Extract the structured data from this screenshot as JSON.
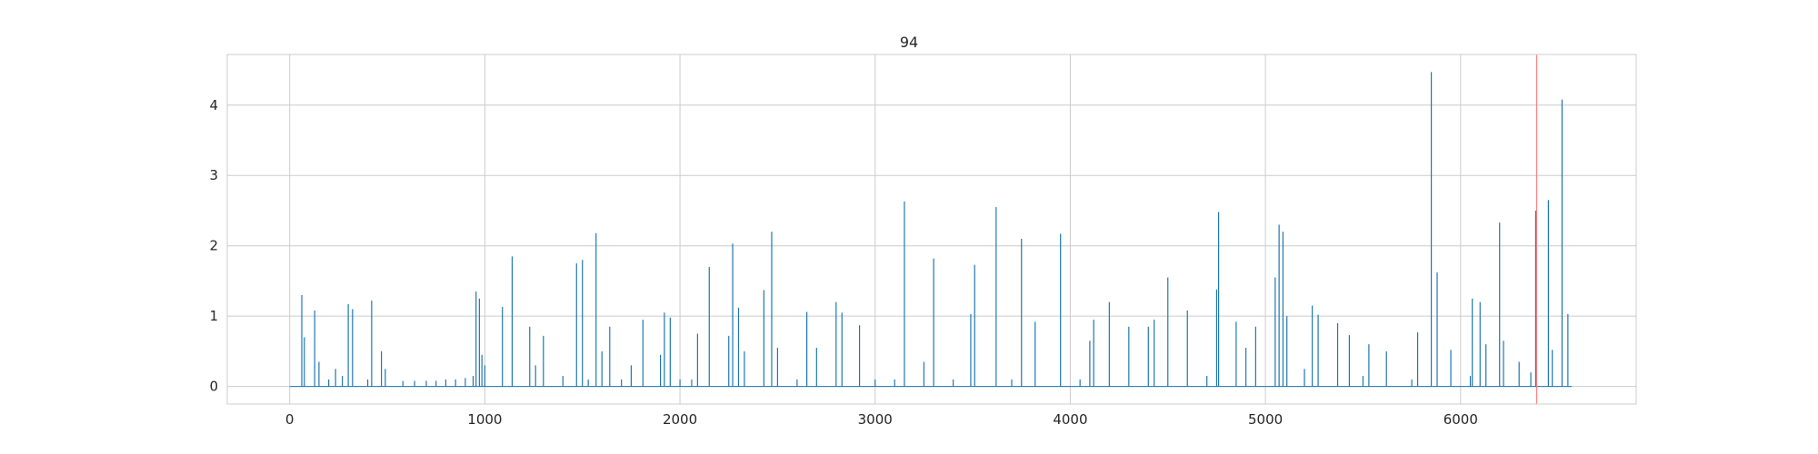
{
  "chart_data": {
    "type": "line",
    "title": "94",
    "xlabel": "",
    "ylabel": "",
    "xlim": [
      -320,
      6900
    ],
    "ylim": [
      -0.25,
      4.72
    ],
    "xticks": [
      0,
      1000,
      2000,
      3000,
      4000,
      5000,
      6000
    ],
    "xtick_labels": [
      "0",
      "1000",
      "2000",
      "3000",
      "4000",
      "5000",
      "6000"
    ],
    "yticks": [
      0,
      1,
      2,
      3,
      4
    ],
    "ytick_labels": [
      "0",
      "1",
      "2",
      "3",
      "4"
    ],
    "grid": true,
    "colors": {
      "series": "#1f77b4",
      "marker_line": "#ff7f7f",
      "grid": "#cccccc"
    },
    "vertical_marker_x": 6390,
    "series": [
      {
        "baseline": 0,
        "x_range": [
          0,
          6570
        ],
        "spikes": [
          [
            62,
            1.3
          ],
          [
            75,
            0.7
          ],
          [
            128,
            1.08
          ],
          [
            150,
            0.35
          ],
          [
            200,
            0.1
          ],
          [
            235,
            0.25
          ],
          [
            270,
            0.15
          ],
          [
            300,
            1.17
          ],
          [
            322,
            1.1
          ],
          [
            400,
            0.1
          ],
          [
            420,
            1.22
          ],
          [
            470,
            0.5
          ],
          [
            490,
            0.25
          ],
          [
            580,
            0.08
          ],
          [
            640,
            0.08
          ],
          [
            700,
            0.08
          ],
          [
            750,
            0.08
          ],
          [
            800,
            0.1
          ],
          [
            850,
            0.1
          ],
          [
            900,
            0.12
          ],
          [
            940,
            0.15
          ],
          [
            955,
            1.35
          ],
          [
            972,
            1.25
          ],
          [
            985,
            0.45
          ],
          [
            1000,
            0.3
          ],
          [
            1090,
            1.13
          ],
          [
            1140,
            1.85
          ],
          [
            1230,
            0.85
          ],
          [
            1260,
            0.3
          ],
          [
            1300,
            0.72
          ],
          [
            1400,
            0.15
          ],
          [
            1470,
            1.75
          ],
          [
            1500,
            1.8
          ],
          [
            1530,
            0.1
          ],
          [
            1570,
            2.18
          ],
          [
            1600,
            0.5
          ],
          [
            1640,
            0.85
          ],
          [
            1700,
            0.1
          ],
          [
            1750,
            0.3
          ],
          [
            1810,
            0.95
          ],
          [
            1900,
            0.45
          ],
          [
            1920,
            1.05
          ],
          [
            1950,
            0.98
          ],
          [
            2000,
            0.1
          ],
          [
            2060,
            0.1
          ],
          [
            2090,
            0.75
          ],
          [
            2150,
            1.7
          ],
          [
            2250,
            0.72
          ],
          [
            2270,
            2.03
          ],
          [
            2300,
            1.12
          ],
          [
            2330,
            0.5
          ],
          [
            2430,
            1.37
          ],
          [
            2470,
            2.2
          ],
          [
            2500,
            0.55
          ],
          [
            2600,
            0.1
          ],
          [
            2650,
            1.06
          ],
          [
            2700,
            0.55
          ],
          [
            2800,
            1.2
          ],
          [
            2830,
            1.05
          ],
          [
            2920,
            0.87
          ],
          [
            3000,
            0.1
          ],
          [
            3100,
            0.1
          ],
          [
            3150,
            2.63
          ],
          [
            3250,
            0.35
          ],
          [
            3300,
            1.82
          ],
          [
            3400,
            0.1
          ],
          [
            3490,
            1.03
          ],
          [
            3510,
            1.73
          ],
          [
            3620,
            2.55
          ],
          [
            3700,
            0.1
          ],
          [
            3750,
            2.1
          ],
          [
            3820,
            0.92
          ],
          [
            3950,
            2.17
          ],
          [
            4050,
            0.1
          ],
          [
            4100,
            0.65
          ],
          [
            4120,
            0.95
          ],
          [
            4200,
            1.2
          ],
          [
            4300,
            0.85
          ],
          [
            4400,
            0.85
          ],
          [
            4430,
            0.95
          ],
          [
            4500,
            1.55
          ],
          [
            4600,
            1.08
          ],
          [
            4700,
            0.15
          ],
          [
            4750,
            1.38
          ],
          [
            4760,
            2.48
          ],
          [
            4850,
            0.92
          ],
          [
            4900,
            0.55
          ],
          [
            4950,
            0.85
          ],
          [
            5050,
            1.55
          ],
          [
            5070,
            2.3
          ],
          [
            5090,
            2.2
          ],
          [
            5110,
            1.0
          ],
          [
            5200,
            0.25
          ],
          [
            5240,
            1.15
          ],
          [
            5270,
            1.02
          ],
          [
            5370,
            0.9
          ],
          [
            5430,
            0.73
          ],
          [
            5500,
            0.15
          ],
          [
            5530,
            0.6
          ],
          [
            5620,
            0.5
          ],
          [
            5750,
            0.1
          ],
          [
            5780,
            0.77
          ],
          [
            5850,
            4.47
          ],
          [
            5880,
            1.62
          ],
          [
            5950,
            0.52
          ],
          [
            6050,
            0.15
          ],
          [
            6060,
            1.25
          ],
          [
            6100,
            1.2
          ],
          [
            6130,
            0.6
          ],
          [
            6200,
            2.33
          ],
          [
            6220,
            0.65
          ],
          [
            6300,
            0.35
          ],
          [
            6360,
            0.2
          ],
          [
            6385,
            2.5
          ],
          [
            6450,
            2.65
          ],
          [
            6470,
            0.52
          ],
          [
            6520,
            4.08
          ],
          [
            6550,
            1.03
          ]
        ]
      }
    ]
  }
}
